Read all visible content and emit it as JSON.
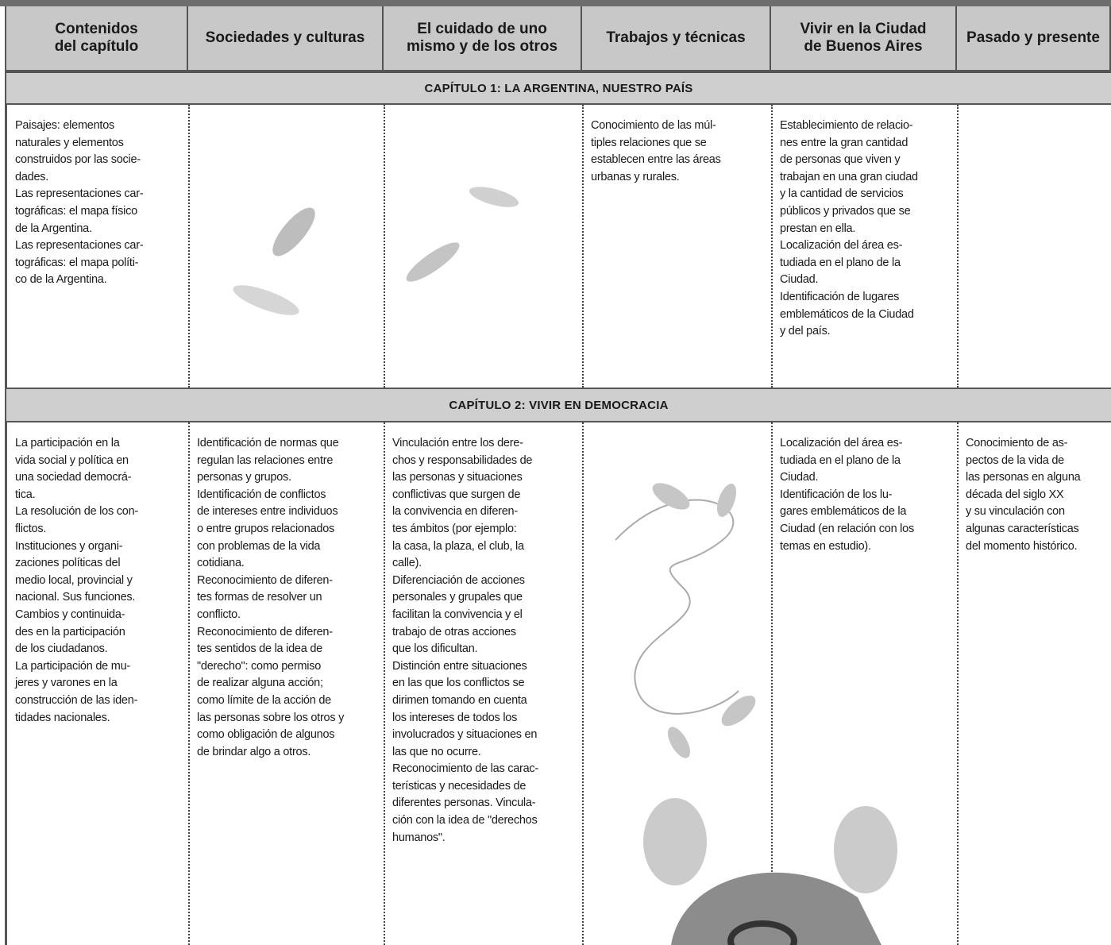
{
  "header": {
    "columns": [
      [
        "Contenidos",
        "del capítulo"
      ],
      [
        "Sociedades y culturas"
      ],
      [
        "El cuidado de uno",
        "mismo y de los otros"
      ],
      [
        "Trabajos y técnicas"
      ],
      [
        "Vivir en la Ciudad",
        "de Buenos Aires"
      ],
      [
        "Pasado y presente"
      ]
    ]
  },
  "sections": [
    {
      "title": "CAPÍTULO 1: LA ARGENTINA, NUESTRO PAÍS",
      "cells": [
        [
          "Paisajes: elementos",
          "naturales y elementos",
          "construidos por las socie-",
          "dades.",
          "Las representaciones car-",
          "tográficas: el mapa físico",
          "de la Argentina.",
          "Las representaciones car-",
          "tográficas: el mapa políti-",
          "co de la Argentina."
        ],
        [],
        [],
        [
          "Conocimiento de las múl-",
          "tiples relaciones que se",
          "establecen entre las áreas",
          "urbanas y rurales."
        ],
        [
          "Establecimiento de relacio-",
          "nes entre la gran cantidad",
          "de personas que viven y",
          "trabajan en una gran ciudad",
          "y la cantidad de servicios",
          "públicos y privados que se",
          "prestan en ella.",
          "Localización del área es-",
          "tudiada en el plano de la",
          "Ciudad.",
          "Identificación de lugares",
          "emblemáticos de la Ciudad",
          "y del país."
        ],
        []
      ]
    },
    {
      "title": "CAPÍTULO 2: VIVIR EN DEMOCRACIA",
      "cells": [
        [
          "La participación en la",
          "vida social y política en",
          "una sociedad democrá-",
          "tica.",
          "La resolución de los con-",
          "flictos.",
          "Instituciones y organi-",
          "zaciones políticas del",
          "medio local, provincial y",
          "nacional. Sus funciones.",
          "Cambios y continuida-",
          "des en la participación",
          "de los ciudadanos.",
          "La participación de mu-",
          "jeres y varones en la",
          "construcción de las iden-",
          "tidades nacionales."
        ],
        [
          "Identificación de normas que",
          "regulan las relaciones entre",
          "personas y grupos.",
          "Identificación de conflictos",
          "de intereses entre individuos",
          "o entre grupos relacionados",
          "con problemas de la vida",
          "cotidiana.",
          "Reconocimiento de diferen-",
          "tes formas de resolver un",
          "conflicto.",
          "Reconocimiento de diferen-",
          "tes sentidos de la idea de",
          "\"derecho\": como permiso",
          "de realizar alguna acción;",
          "como límite de la acción de",
          "las personas sobre los otros y",
          "como obligación de algunos",
          "de brindar algo a otros."
        ],
        [
          "Vinculación entre los dere-",
          "chos y responsabilidades de",
          "las personas y situaciones",
          "conflictivas que surgen de",
          "la convivencia en diferen-",
          "tes ámbitos (por ejemplo:",
          "la casa, la plaza, el club, la",
          "calle).",
          "Diferenciación de acciones",
          "personales y grupales que",
          "facilitan la convivencia y el",
          "trabajo de otras acciones",
          "que los dificultan.",
          "Distinción entre situaciones",
          "en las que los conflictos se",
          "dirimen tomando en cuenta",
          "los intereses de todos los",
          "involucrados y situaciones en",
          "las que no ocurre.",
          "Reconocimiento de las carac-",
          "terísticas y necesidades de",
          "diferentes personas. Vincula-",
          "ción con la idea de \"derechos",
          "humanos\"."
        ],
        [],
        [
          "Localización del área es-",
          "tudiada en el plano de la",
          "Ciudad.",
          "Identificación de los lu-",
          "gares emblemáticos de la",
          "Ciudad (en relación con los",
          "temas en estudio)."
        ],
        [
          "Conocimiento de as-",
          "pectos de la vida de",
          "las personas en alguna",
          "década del siglo XX",
          "y su vinculación con",
          "algunas características",
          "del momento histórico."
        ]
      ]
    }
  ]
}
